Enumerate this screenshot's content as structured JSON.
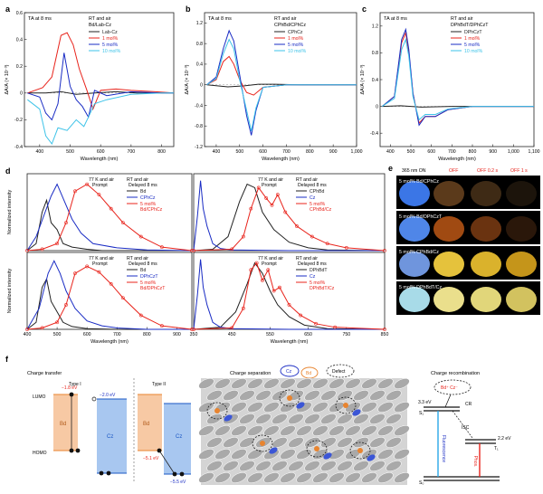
{
  "chart_data": [
    {
      "panel": "a",
      "type": "line",
      "annotation": "TA at 8 ms",
      "legend_title": "RT and air",
      "legend_subtitle": "Bd/Lab-Cz",
      "xlabel": "Wavelength (nm)",
      "ylabel": "ΔA/A (× 10⁻³)",
      "xlim": [
        350,
        840
      ],
      "ylim": [
        -0.4,
        0.6
      ],
      "xticks": [
        "400",
        "500",
        "600",
        "700",
        "800"
      ],
      "yticks": [
        "-0.4",
        "-0.2",
        "0",
        "0.2",
        "0.4",
        "0.6"
      ],
      "series": [
        {
          "name": "Lab-Cz",
          "color": "#222222",
          "x": [
            360,
            420,
            470,
            520,
            580,
            650,
            720,
            800,
            840
          ],
          "y": [
            0,
            0,
            0.01,
            -0.01,
            0,
            0.01,
            0,
            0,
            0
          ]
        },
        {
          "name": "1 mol%",
          "color": "#e8231b",
          "x": [
            360,
            410,
            440,
            470,
            490,
            510,
            530,
            555,
            575,
            600,
            650,
            700,
            780,
            840
          ],
          "y": [
            0,
            0.04,
            0.12,
            0.43,
            0.45,
            0.36,
            0.18,
            0.02,
            -0.12,
            0.02,
            0.03,
            0.02,
            0.01,
            0
          ]
        },
        {
          "name": "5 mol%",
          "color": "#1a2cc4",
          "x": [
            360,
            400,
            420,
            440,
            460,
            480,
            500,
            520,
            540,
            560,
            580,
            620,
            700,
            800,
            840
          ],
          "y": [
            0,
            -0.03,
            -0.15,
            -0.2,
            -0.08,
            0.3,
            0.05,
            -0.05,
            -0.1,
            -0.18,
            0.02,
            -0.02,
            0.01,
            0,
            0
          ]
        },
        {
          "name": "10 mol%",
          "color": "#3ec3e8",
          "x": [
            360,
            400,
            420,
            440,
            460,
            490,
            520,
            545,
            560,
            580,
            620,
            700,
            800,
            840
          ],
          "y": [
            -0.05,
            -0.12,
            -0.32,
            -0.38,
            -0.26,
            -0.28,
            -0.2,
            -0.25,
            -0.18,
            -0.08,
            -0.05,
            -0.01,
            0,
            0
          ]
        }
      ]
    },
    {
      "panel": "b",
      "type": "line",
      "annotation": "TA at 8 ms",
      "legend_title": "RT and air",
      "legend_subtitle": "CPhBd/CPhCz",
      "xlabel": "Wavelength (nm)",
      "ylabel": "ΔA/A (× 10⁻³)",
      "xlim": [
        350,
        1000
      ],
      "ylim": [
        -1.2,
        1.4
      ],
      "xticks": [
        "400",
        "500",
        "600",
        "700",
        "800",
        "900",
        "1,000"
      ],
      "yticks": [
        "-1.2",
        "-0.8",
        "-0.4",
        "0",
        "0.4",
        "0.8",
        "1.2"
      ],
      "series": [
        {
          "name": "CPhCz",
          "color": "#222222",
          "x": [
            360,
            450,
            520,
            580,
            650,
            760,
            880,
            1000
          ],
          "y": [
            0,
            -0.04,
            -0.02,
            0.01,
            0.01,
            0,
            0,
            0
          ]
        },
        {
          "name": "1 mol%",
          "color": "#e8231b",
          "x": [
            360,
            400,
            430,
            455,
            475,
            500,
            530,
            560,
            600,
            700,
            1000
          ],
          "y": [
            0,
            0.1,
            0.45,
            0.55,
            0.4,
            0.1,
            -0.15,
            -0.2,
            -0.05,
            0,
            0
          ]
        },
        {
          "name": "5 mol%",
          "color": "#1a2cc4",
          "x": [
            360,
            400,
            430,
            455,
            475,
            500,
            530,
            550,
            570,
            600,
            700,
            1000
          ],
          "y": [
            0,
            0.15,
            0.7,
            1.05,
            0.85,
            0.2,
            -0.6,
            -0.98,
            -0.5,
            -0.05,
            0,
            0
          ]
        },
        {
          "name": "10 mol%",
          "color": "#3ec3e8",
          "x": [
            360,
            400,
            430,
            455,
            475,
            500,
            530,
            550,
            570,
            600,
            700,
            1000
          ],
          "y": [
            0,
            0.12,
            0.6,
            0.88,
            0.7,
            0.1,
            -0.5,
            -0.9,
            -0.45,
            -0.05,
            0,
            0
          ]
        }
      ]
    },
    {
      "panel": "c",
      "type": "line",
      "annotation": "TA at 8 ms",
      "legend_title": "RT and air",
      "legend_subtitle": "DPhBdT/DPhCzT",
      "xlabel": "Wavelength (nm)",
      "ylabel": "ΔA/A (× 10⁻³)",
      "xlim": [
        350,
        1100
      ],
      "ylim": [
        -0.6,
        1.4
      ],
      "xticks": [
        "400",
        "500",
        "600",
        "700",
        "800",
        "900",
        "1,000",
        "1,100"
      ],
      "yticks": [
        "-0.4",
        "0",
        "0.4",
        "0.8",
        "1.2"
      ],
      "series": [
        {
          "name": "DPhCzT",
          "color": "#222222",
          "x": [
            360,
            450,
            550,
            700,
            900,
            1100
          ],
          "y": [
            0,
            0.01,
            -0.01,
            0,
            0,
            0
          ]
        },
        {
          "name": "1 mol%",
          "color": "#e8231b",
          "x": [
            360,
            420,
            455,
            475,
            490,
            510,
            540,
            570,
            620,
            680,
            800,
            1100
          ],
          "y": [
            0,
            0.15,
            0.95,
            1.1,
            0.8,
            0.2,
            -0.25,
            -0.15,
            -0.15,
            -0.05,
            0,
            0
          ]
        },
        {
          "name": "5 mol%",
          "color": "#1a2cc4",
          "x": [
            360,
            420,
            455,
            475,
            490,
            510,
            540,
            570,
            620,
            680,
            800,
            1100
          ],
          "y": [
            0,
            0.15,
            1.0,
            1.15,
            0.85,
            0.2,
            -0.28,
            -0.15,
            -0.15,
            -0.05,
            0,
            0
          ]
        },
        {
          "name": "10 mol%",
          "color": "#3ec3e8",
          "x": [
            360,
            420,
            455,
            475,
            490,
            510,
            540,
            570,
            620,
            680,
            800,
            1100
          ],
          "y": [
            0,
            0.12,
            0.85,
            1.0,
            0.75,
            0.15,
            -0.2,
            -0.12,
            -0.12,
            -0.04,
            0,
            0
          ]
        }
      ]
    },
    {
      "panel": "d-top-left",
      "type": "line",
      "ylabel": "Normalized intensity",
      "xlim": [
        400,
        950
      ],
      "ylim": [
        0,
        1.1
      ],
      "legend_header_1": "77 K and air",
      "legend_header_2": "RT and air",
      "legend_col_1": "Prompt",
      "legend_col_2": "Delayed 8 ms",
      "series": [
        {
          "name": "Bd",
          "color": "#222222",
          "x": [
            400,
            430,
            450,
            465,
            480,
            500,
            520,
            550,
            600,
            650,
            700,
            800,
            950
          ],
          "y": [
            0,
            0.1,
            0.55,
            0.72,
            0.4,
            0.3,
            0.1,
            0.05,
            0.02,
            0,
            0,
            0,
            0
          ]
        },
        {
          "name": "CPhCz",
          "color": "#1a2cc4",
          "x": [
            400,
            430,
            460,
            480,
            500,
            520,
            550,
            580,
            620,
            700,
            800,
            950
          ],
          "y": [
            0,
            0.2,
            0.55,
            0.78,
            0.95,
            0.75,
            0.45,
            0.25,
            0.1,
            0.04,
            0.01,
            0
          ]
        },
        {
          "name": "5 mol%\nBd/CPhCz",
          "color": "#e8231b",
          "x": [
            400,
            450,
            500,
            530,
            560,
            600,
            640,
            680,
            720,
            780,
            850,
            950
          ],
          "y": [
            0,
            0.02,
            0.1,
            0.4,
            0.85,
            0.95,
            0.8,
            0.6,
            0.4,
            0.2,
            0.05,
            0
          ]
        }
      ]
    },
    {
      "panel": "d-top-right",
      "type": "line",
      "xlim": [
        350,
        850
      ],
      "ylim": [
        0,
        1.1
      ],
      "legend_header_1": "77 K and air",
      "legend_header_2": "RT and air",
      "legend_col_1": "Prompt",
      "legend_col_2": "Delayed 8 ms",
      "series": [
        {
          "name": "CPhBd",
          "color": "#222222",
          "x": [
            350,
            400,
            440,
            470,
            490,
            510,
            530,
            560,
            600,
            650,
            700,
            850
          ],
          "y": [
            0,
            0.02,
            0.2,
            0.7,
            0.95,
            0.9,
            0.55,
            0.3,
            0.12,
            0.04,
            0.01,
            0
          ]
        },
        {
          "name": "Cz",
          "color": "#1a2cc4",
          "x": [
            350,
            360,
            368,
            375,
            385,
            400,
            420,
            450,
            600,
            850
          ],
          "y": [
            0,
            0.5,
            1.0,
            0.6,
            0.35,
            0.1,
            0.03,
            0.01,
            0,
            0
          ]
        },
        {
          "name": "5 mol%\nCPhBd/Cz",
          "color": "#e8231b",
          "x": [
            350,
            450,
            480,
            500,
            520,
            540,
            555,
            570,
            590,
            620,
            660,
            700,
            750,
            850
          ],
          "y": [
            0,
            0.02,
            0.2,
            0.6,
            0.9,
            0.75,
            0.65,
            0.8,
            0.55,
            0.35,
            0.2,
            0.1,
            0.04,
            0
          ]
        }
      ]
    },
    {
      "panel": "d-bottom-left",
      "type": "line",
      "ylabel": "Normalized intensity",
      "xlabel": "Wavelength (nm)",
      "xlim": [
        400,
        950
      ],
      "ylim": [
        0,
        1.1
      ],
      "xticks": [
        "400",
        "500",
        "600",
        "700",
        "800",
        "900"
      ],
      "legend_header_1": "77 K and air",
      "legend_header_2": "RT and air",
      "legend_col_1": "Prompt",
      "legend_col_2": "Delayed 8 ms",
      "series": [
        {
          "name": "Bd",
          "color": "#222222",
          "x": [
            400,
            430,
            450,
            465,
            480,
            500,
            520,
            550,
            600,
            700,
            950
          ],
          "y": [
            0,
            0.1,
            0.6,
            0.72,
            0.4,
            0.25,
            0.1,
            0.04,
            0.01,
            0,
            0
          ]
        },
        {
          "name": "DPhCzT",
          "color": "#1a2cc4",
          "x": [
            400,
            440,
            470,
            490,
            510,
            530,
            560,
            600,
            650,
            700,
            800,
            950
          ],
          "y": [
            0,
            0.3,
            0.8,
            0.98,
            0.8,
            0.55,
            0.3,
            0.12,
            0.05,
            0.02,
            0,
            0
          ]
        },
        {
          "name": "5 mol%\nBd/DPhCzT",
          "color": "#e8231b",
          "x": [
            400,
            450,
            500,
            530,
            560,
            600,
            640,
            680,
            720,
            780,
            850,
            950
          ],
          "y": [
            0,
            0.02,
            0.1,
            0.35,
            0.8,
            0.9,
            0.82,
            0.65,
            0.45,
            0.2,
            0.05,
            0
          ]
        }
      ]
    },
    {
      "panel": "d-bottom-right",
      "type": "line",
      "xlabel": "Wavelength (nm)",
      "xlim": [
        350,
        850
      ],
      "ylim": [
        0,
        1.1
      ],
      "xticks": [
        "350",
        "450",
        "550",
        "650",
        "750",
        "850"
      ],
      "legend_header_1": "77 K and air",
      "legend_header_2": "RT and air",
      "legend_col_1": "Prompt",
      "legend_col_2": "Delayed 8 ms",
      "series": [
        {
          "name": "DPhBdT",
          "color": "#222222",
          "x": [
            350,
            420,
            460,
            490,
            510,
            530,
            550,
            570,
            600,
            640,
            700,
            850
          ],
          "y": [
            0,
            0.03,
            0.25,
            0.65,
            0.95,
            0.8,
            0.55,
            0.35,
            0.18,
            0.06,
            0.01,
            0
          ]
        },
        {
          "name": "Cz",
          "color": "#1a2cc4",
          "x": [
            350,
            360,
            368,
            375,
            385,
            400,
            420,
            450,
            600,
            850
          ],
          "y": [
            0,
            0.5,
            1.0,
            0.6,
            0.35,
            0.1,
            0.03,
            0.01,
            0,
            0
          ]
        },
        {
          "name": "5 mol%\nDPhBdT/Cz",
          "color": "#e8231b",
          "x": [
            350,
            450,
            480,
            500,
            515,
            530,
            545,
            560,
            575,
            600,
            630,
            670,
            720,
            850
          ],
          "y": [
            0,
            0.02,
            0.3,
            0.85,
            0.95,
            0.7,
            0.85,
            0.55,
            0.6,
            0.35,
            0.2,
            0.08,
            0.03,
            0
          ]
        }
      ]
    }
  ],
  "labels": {
    "a": "a",
    "b": "b",
    "c": "c",
    "d": "d",
    "e": "e",
    "f": "f"
  },
  "photos": {
    "header_nm": "365 nm ON",
    "header_off": "OFF",
    "header_off_02": "OFF 0.2 s",
    "header_off_1": "OFF 1 s",
    "rows": [
      {
        "label": "5 mol% Bd/CPhCz",
        "on": "#3b76e6",
        "off1": "#5b3a1b",
        "off2": "#3e2a15",
        "off3": "#1c140b"
      },
      {
        "label": "5 mol% Bd/DPhCzT",
        "on": "#4f86e8",
        "off1": "#a04a12",
        "off2": "#6a3310",
        "off3": "#2a170a"
      },
      {
        "label": "5 mol% CPhBd/Cz",
        "on": "#6f95dd",
        "off1": "#e5c23c",
        "off2": "#dab22c",
        "off3": "#c5951a"
      },
      {
        "label": "5 mol% DPhBdT/Cz",
        "on": "#a8dbe8",
        "off1": "#eadf8c",
        "off2": "#e1d67a",
        "off3": "#d2c25f"
      }
    ]
  },
  "schema_f": {
    "charge_transfer": "Charge transfer",
    "type1": "Type I",
    "type2": "Type II",
    "lumo": "LUMO",
    "homo": "HOMO",
    "e_bd_t1": "−1.8 eV",
    "e_cz_t1": "−2.0 eV",
    "e_bd_t2": "−5.1 eV",
    "e_cz_t2": "−5.5 eV",
    "bd": "Bd",
    "cz": "Cz",
    "charge_separation": "Charge separation",
    "legend_cz": "Cz",
    "legend_bd": "Bd",
    "legend_defect": "Defect",
    "charge_recombination": "Charge recombination",
    "cr_pair": "Bd⁺ Cz⁻",
    "e_s1": "3.3 eV",
    "s1": "S₁",
    "cr": "CR",
    "isc": "ISC",
    "e_t1": "2.2 eV",
    "t1": "T₁",
    "s0": "S₀",
    "fluorescence": "Fluorescence",
    "phos": "Phos."
  }
}
